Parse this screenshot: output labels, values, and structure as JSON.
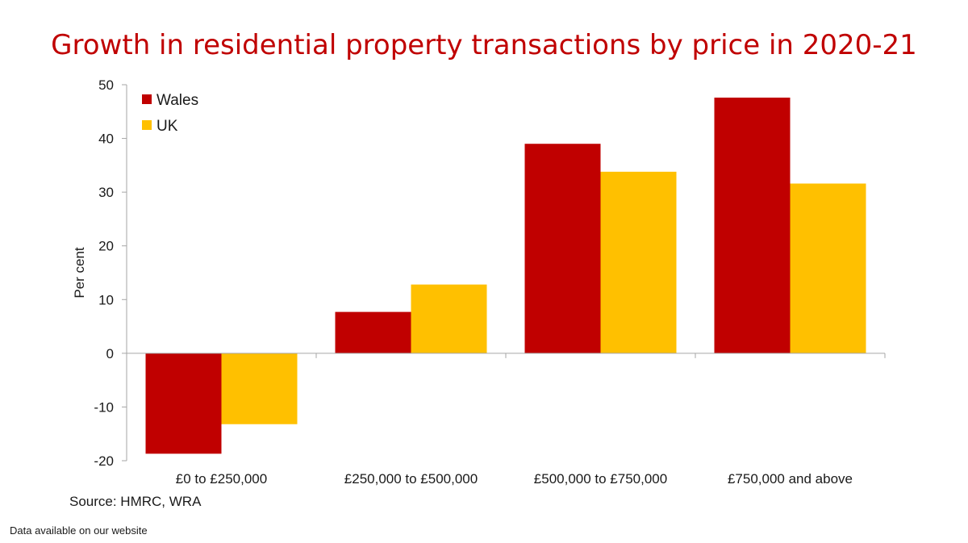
{
  "chart_data": {
    "type": "bar",
    "title": "Growth in residential property transactions by price in 2020-21",
    "ylabel": "Per cent",
    "xlabel": "",
    "categories": [
      "£0 to £250,000",
      "£250,000 to £500,000",
      "£500,000 to £750,000",
      "£750,000 and above"
    ],
    "series": [
      {
        "name": "Wales",
        "color": "#c00000",
        "values": [
          -18.7,
          7.7,
          39.0,
          47.6
        ]
      },
      {
        "name": "UK",
        "color": "#ffc000",
        "values": [
          -13.2,
          12.8,
          33.8,
          31.6
        ]
      }
    ],
    "ylim": [
      -20,
      50
    ],
    "yticks": [
      -20,
      -10,
      0,
      10,
      20,
      30,
      40,
      50
    ],
    "grid": false,
    "legend": "top-left"
  },
  "source": "Source: HMRC, WRA",
  "footnote": "Data available on our website"
}
